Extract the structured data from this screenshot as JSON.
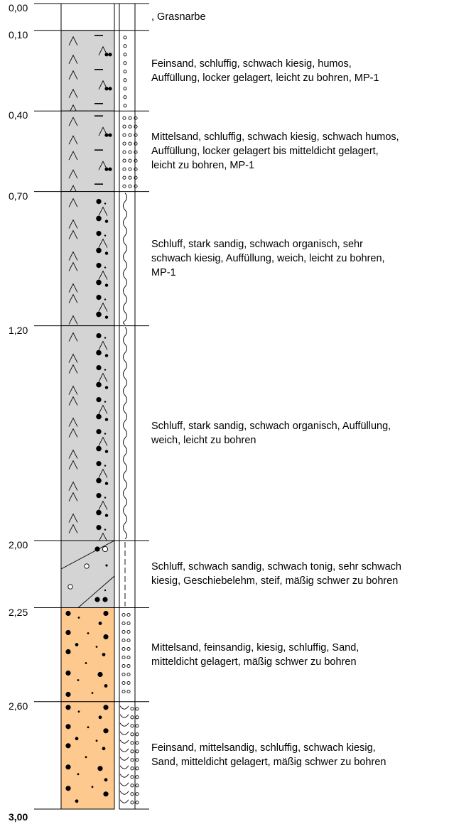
{
  "layers": [
    {
      "top": "0,00",
      "bottom_depth": 0.1,
      "top_depth": 0.0,
      "description": ", Grasnarbe",
      "soil": "topsoil"
    },
    {
      "top": "0,10",
      "bottom_depth": 0.4,
      "top_depth": 0.1,
      "description": "Feinsand, schluffig, schwach kiesig, humos,\nAuffüllung, locker gelagert, leicht zu bohren, MP-1",
      "soil": "fill-sand"
    },
    {
      "top": "0,40",
      "bottom_depth": 0.7,
      "top_depth": 0.4,
      "description": "Mittelsand, schluffig, schwach kiesig, schwach humos,\nAuffüllung, locker gelagert bis mitteldicht gelagert,\nleicht zu bohren, MP-1",
      "soil": "fill-sand"
    },
    {
      "top": "0,70",
      "bottom_depth": 1.2,
      "top_depth": 0.7,
      "description": "Schluff, stark sandig, schwach organisch, sehr\nschwach kiesig, Auffüllung, weich, leicht zu bohren,\nMP-1",
      "soil": "fill-silt"
    },
    {
      "top": "1,20",
      "bottom_depth": 2.0,
      "top_depth": 1.2,
      "description": "Schluff, stark sandig, schwach organisch, Auffüllung,\nweich, leicht zu bohren",
      "soil": "fill-silt"
    },
    {
      "top": "2,00",
      "bottom_depth": 2.25,
      "top_depth": 2.0,
      "description": "Schluff, schwach sandig, schwach tonig, sehr schwach\nkiesig, Geschiebelehm, steif, mäßig schwer zu bohren",
      "soil": "till"
    },
    {
      "top": "2,25",
      "bottom_depth": 2.6,
      "top_depth": 2.25,
      "description": "Mittelsand, feinsandig, kiesig, schluffig, Sand,\nmitteldicht gelagert, mäßig schwer zu bohren",
      "soil": "sand"
    },
    {
      "top": "2,60",
      "bottom_depth": 3.0,
      "top_depth": 2.6,
      "description": "Feinsand, mittelsandig, schluffig, schwach kiesig,\nSand, mitteldicht gelagert, mäßig schwer zu bohren",
      "soil": "sand"
    }
  ],
  "final_depth": "3,00",
  "colors": {
    "fill": "#d4d4d4",
    "sand": "#fec98f",
    "topsoil": "#ffffff",
    "line": "#000000"
  }
}
